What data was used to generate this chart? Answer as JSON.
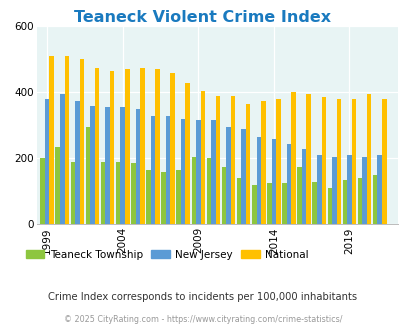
{
  "title": "Teaneck Violent Crime Index",
  "title_color": "#1a7abf",
  "years": [
    1999,
    2000,
    2001,
    2002,
    2003,
    2004,
    2005,
    2006,
    2007,
    2008,
    2009,
    2010,
    2011,
    2012,
    2013,
    2014,
    2015,
    2016,
    2017,
    2018,
    2019,
    2020,
    2021
  ],
  "teaneck": [
    200,
    235,
    190,
    295,
    190,
    190,
    185,
    165,
    160,
    165,
    205,
    200,
    175,
    140,
    120,
    125,
    125,
    175,
    130,
    110,
    135,
    140,
    150
  ],
  "nj": [
    380,
    395,
    375,
    360,
    355,
    355,
    350,
    330,
    330,
    320,
    315,
    315,
    295,
    290,
    265,
    260,
    245,
    230,
    210,
    205,
    210,
    205,
    210
  ],
  "national": [
    510,
    510,
    500,
    475,
    465,
    470,
    475,
    470,
    460,
    430,
    405,
    390,
    390,
    365,
    375,
    380,
    400,
    395,
    385,
    380,
    380,
    395,
    380
  ],
  "teaneck_color": "#8dc63f",
  "nj_color": "#5b9bd5",
  "national_color": "#ffc000",
  "bg_color": "#e8f4f4",
  "ylim": [
    0,
    600
  ],
  "yticks": [
    0,
    200,
    400,
    600
  ],
  "subtitle": "Crime Index corresponds to incidents per 100,000 inhabitants",
  "subtitle_color": "#333333",
  "footer": "© 2025 CityRating.com - https://www.cityrating.com/crime-statistics/",
  "footer_color": "#999999",
  "legend_labels": [
    "Teaneck Township",
    "New Jersey",
    "National"
  ],
  "xtick_labels": [
    "1999",
    "2004",
    "2009",
    "2014",
    "2019"
  ],
  "xtick_positions": [
    1999,
    2004,
    2009,
    2014,
    2019
  ]
}
